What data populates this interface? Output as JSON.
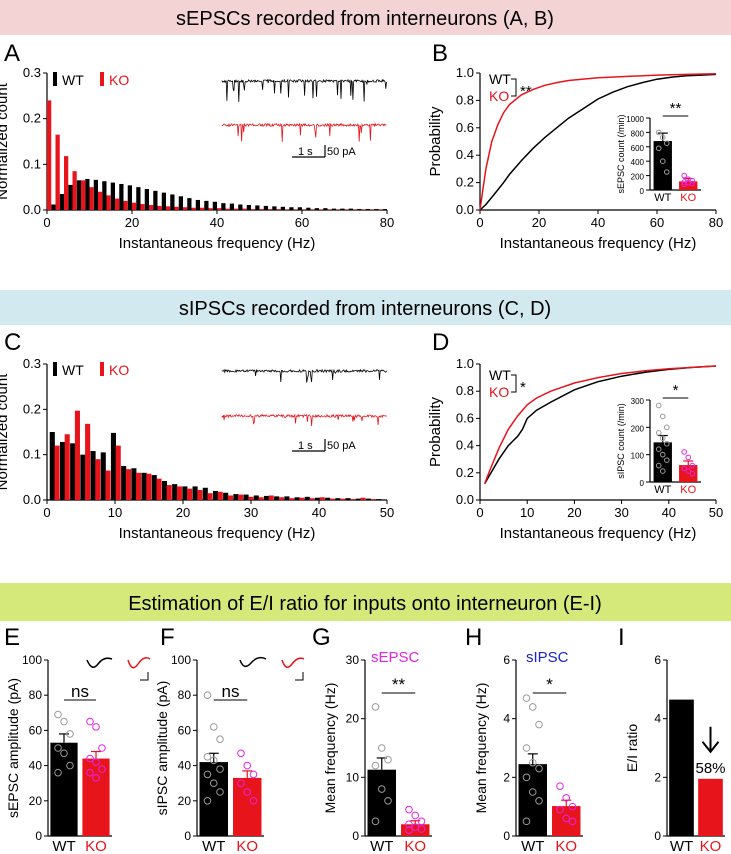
{
  "colors": {
    "wt": "#000000",
    "ko": "#e8141b",
    "pink_band": "#f3d3d4",
    "blue_band": "#d2e9ef",
    "green_band": "#d5e97a",
    "magenta": "#e424e4",
    "blue": "#1a22cc",
    "gray_dot": "#9a9a9a"
  },
  "headers": {
    "top": "sEPSCs recorded from interneurons (A, B)",
    "middle": "sIPSCs recorded from interneurons (C, D)",
    "bottom": "Estimation of E/I ratio for inputs onto interneuron (E-I)"
  },
  "common": {
    "wt": "WT",
    "ko": "KO",
    "scale_time": "1 s",
    "scale_amp": "50 pA"
  },
  "chart_data": [
    {
      "panel": "A",
      "type": "bar",
      "xlabel": "Instantaneous frequency (Hz)",
      "ylabel": "Normalized count",
      "xlim": [
        0,
        80
      ],
      "ylim": [
        0,
        0.3
      ],
      "bin_width": 2,
      "xticks": [
        "0",
        "20",
        "40",
        "60",
        "80"
      ],
      "yticks": [
        "0.0",
        "0.1",
        "0.2",
        "0.3"
      ],
      "legend": [
        "WT",
        "KO"
      ],
      "series": [
        {
          "name": "WT",
          "values": [
            0.012,
            0.035,
            0.055,
            0.065,
            0.068,
            0.066,
            0.063,
            0.06,
            0.057,
            0.054,
            0.05,
            0.046,
            0.042,
            0.038,
            0.034,
            0.03,
            0.026,
            0.022,
            0.02,
            0.018,
            0.015,
            0.014,
            0.012,
            0.011,
            0.01,
            0.009,
            0.008,
            0.007,
            0.006,
            0.006,
            0.005,
            0.004,
            0.004,
            0.003,
            0.003,
            0.003,
            0.002,
            0.002,
            0.002,
            0.002
          ]
        },
        {
          "name": "KO",
          "values": [
            0.24,
            0.165,
            0.118,
            0.085,
            0.065,
            0.05,
            0.04,
            0.032,
            0.025,
            0.02,
            0.016,
            0.013,
            0.011,
            0.009,
            0.008,
            0.007,
            0.006,
            0.005,
            0.005,
            0.004,
            0.004,
            0.003,
            0.003,
            0.003,
            0.002,
            0.002,
            0.002,
            0.002,
            0.001,
            0.001,
            0.001,
            0.001,
            0.001,
            0.001,
            0.001,
            0.001,
            0.001,
            0.001,
            0.001,
            0.001
          ]
        }
      ]
    },
    {
      "panel": "B",
      "type": "line",
      "xlabel": "Instantaneous frequency (Hz)",
      "ylabel": "Probability",
      "xlim": [
        0,
        80
      ],
      "ylim": [
        0,
        1.0
      ],
      "xticks": [
        "0",
        "20",
        "40",
        "60",
        "80"
      ],
      "yticks": [
        "0.0",
        "0.2",
        "0.4",
        "0.6",
        "0.8",
        "1.0"
      ],
      "significance": "**",
      "series": [
        {
          "name": "WT",
          "x": [
            0,
            2,
            5,
            8,
            10,
            14,
            18,
            22,
            26,
            30,
            35,
            40,
            45,
            50,
            55,
            60,
            65,
            70,
            75,
            80
          ],
          "y": [
            0,
            0.04,
            0.12,
            0.2,
            0.26,
            0.36,
            0.45,
            0.53,
            0.6,
            0.67,
            0.74,
            0.81,
            0.86,
            0.9,
            0.93,
            0.955,
            0.97,
            0.98,
            0.985,
            0.99
          ]
        },
        {
          "name": "KO",
          "x": [
            0,
            1,
            2,
            4,
            6,
            8,
            10,
            14,
            18,
            22,
            26,
            30,
            40,
            50,
            60,
            70,
            80
          ],
          "y": [
            0,
            0.15,
            0.3,
            0.5,
            0.62,
            0.71,
            0.77,
            0.84,
            0.88,
            0.91,
            0.93,
            0.945,
            0.965,
            0.975,
            0.985,
            0.99,
            0.995
          ]
        }
      ],
      "inset": {
        "type": "bar",
        "ylabel": "sEPSC count (/min)",
        "ylim": [
          0,
          1000
        ],
        "yticks": [
          "0",
          "200",
          "400",
          "600",
          "800",
          "1000"
        ],
        "categories": [
          "WT",
          "KO"
        ],
        "values": [
          680,
          120
        ],
        "errors": [
          110,
          40
        ],
        "significance": "**",
        "points": [
          [
            800,
            730,
            650,
            580,
            400,
            250
          ],
          [
            200,
            150,
            130,
            110,
            100,
            90,
            80
          ]
        ]
      }
    },
    {
      "panel": "C",
      "type": "bar",
      "xlabel": "Instantaneous frequency (Hz)",
      "ylabel": "Normalized count",
      "xlim": [
        0,
        50
      ],
      "ylim": [
        0,
        0.3
      ],
      "bin_width": 1.5,
      "xticks": [
        "0",
        "10",
        "20",
        "30",
        "40",
        "50"
      ],
      "yticks": [
        "0.0",
        "0.1",
        "0.2",
        "0.3"
      ],
      "legend": [
        "WT",
        "KO"
      ],
      "series": [
        {
          "name": "WT",
          "x": [
            0.4,
            1.9,
            3.4,
            4.9,
            6.4,
            7.9,
            9.4,
            10.9,
            12.4,
            13.9,
            15.4,
            16.9,
            18.4,
            19.9,
            21.4,
            22.9,
            24.4,
            25.9,
            27.4,
            28.9,
            30.4,
            31.9,
            33.4,
            34.9,
            36.4,
            37.9,
            39.4,
            40.9,
            42.4,
            43.9,
            45.4,
            46.9,
            48.4
          ],
          "values": [
            0.15,
            0.128,
            0.125,
            0.1,
            0.108,
            0.105,
            0.148,
            0.075,
            0.07,
            0.06,
            0.055,
            0.042,
            0.035,
            0.03,
            0.03,
            0.027,
            0.02,
            0.016,
            0.013,
            0.012,
            0.01,
            0.009,
            0.008,
            0.008,
            0.006,
            0.007,
            0.005,
            0.005,
            0.004,
            0.004,
            0.003,
            0.003,
            0.002
          ]
        },
        {
          "name": "KO",
          "x": [
            1.1,
            2.6,
            4.1,
            5.6,
            7.1,
            8.6,
            10.1,
            11.6,
            13.1,
            14.6,
            16.1,
            17.6,
            19.1,
            20.6,
            22.1,
            23.6,
            25.1,
            26.6,
            28.1,
            29.6,
            31.1,
            32.6,
            34.1,
            35.6,
            37.1,
            38.6,
            40.1,
            41.6,
            43.1,
            44.6,
            46.1,
            47.6
          ],
          "values": [
            0.12,
            0.145,
            0.197,
            0.168,
            0.09,
            0.065,
            0.12,
            0.068,
            0.06,
            0.058,
            0.047,
            0.033,
            0.03,
            0.025,
            0.022,
            0.015,
            0.018,
            0.01,
            0.012,
            0.007,
            0.006,
            0.01,
            0.006,
            0.004,
            0.005,
            0.004,
            0.006,
            0.003,
            0.003,
            0.002,
            0.005,
            0.002
          ]
        }
      ]
    },
    {
      "panel": "D",
      "type": "line",
      "xlabel": "Instantaneous frequency (Hz)",
      "ylabel": "Probability",
      "xlim": [
        0,
        50
      ],
      "ylim": [
        0,
        1.0
      ],
      "xticks": [
        "0",
        "10",
        "20",
        "30",
        "40",
        "50"
      ],
      "yticks": [
        "0.0",
        "0.2",
        "0.4",
        "0.6",
        "0.8",
        "1.0"
      ],
      "significance": "*",
      "series": [
        {
          "name": "WT",
          "x": [
            1,
            2,
            4,
            6,
            8,
            9,
            10,
            12,
            15,
            20,
            25,
            30,
            35,
            40,
            45,
            50
          ],
          "y": [
            0.12,
            0.18,
            0.3,
            0.4,
            0.47,
            0.52,
            0.6,
            0.66,
            0.72,
            0.81,
            0.87,
            0.91,
            0.94,
            0.96,
            0.975,
            0.985
          ]
        },
        {
          "name": "KO",
          "x": [
            1,
            2,
            4,
            6,
            8,
            10,
            12,
            15,
            20,
            25,
            30,
            35,
            40,
            45,
            50
          ],
          "y": [
            0.12,
            0.21,
            0.38,
            0.52,
            0.62,
            0.7,
            0.75,
            0.8,
            0.86,
            0.9,
            0.93,
            0.95,
            0.965,
            0.975,
            0.985
          ]
        }
      ],
      "inset": {
        "type": "bar",
        "ylabel": "sIPSC count (/min)",
        "ylim": [
          0,
          300
        ],
        "yticks": [
          "0",
          "100",
          "200",
          "300"
        ],
        "categories": [
          "WT",
          "KO"
        ],
        "values": [
          145,
          62
        ],
        "errors": [
          25,
          15
        ],
        "significance": "*",
        "points": [
          [
            280,
            240,
            200,
            180,
            160,
            140,
            120,
            100,
            80,
            60,
            40
          ],
          [
            110,
            90,
            60,
            50,
            40,
            30
          ]
        ]
      }
    },
    {
      "panel": "E",
      "type": "bar",
      "ylabel": "sEPSC amplitude (pA)",
      "ylim": [
        0,
        100
      ],
      "yticks": [
        "0",
        "20",
        "40",
        "60",
        "80",
        "100"
      ],
      "categories": [
        "WT",
        "KO"
      ],
      "values": [
        53,
        44
      ],
      "errors": [
        5,
        4
      ],
      "significance": "ns",
      "points": [
        [
          69,
          65,
          58,
          50,
          47,
          40,
          36
        ],
        [
          65,
          62,
          50,
          44,
          42,
          38,
          36,
          33
        ]
      ]
    },
    {
      "panel": "F",
      "type": "bar",
      "ylabel": "sIPSC amplitude (pA)",
      "ylim": [
        0,
        100
      ],
      "yticks": [
        "0",
        "20",
        "40",
        "60",
        "80",
        "100"
      ],
      "categories": [
        "WT",
        "KO"
      ],
      "values": [
        42,
        33
      ],
      "errors": [
        5,
        4
      ],
      "significance": "ns",
      "points": [
        [
          80,
          62,
          55,
          45,
          43,
          38,
          35,
          30,
          25,
          20
        ],
        [
          47,
          40,
          35,
          30,
          25,
          20
        ]
      ]
    },
    {
      "panel": "G",
      "type": "bar",
      "ylabel": "Mean frequency (Hz)",
      "title": "sEPSC",
      "ylim": [
        0,
        30
      ],
      "yticks": [
        "0",
        "10",
        "20",
        "30"
      ],
      "categories": [
        "WT",
        "KO"
      ],
      "values": [
        11.3,
        2.0
      ],
      "errors": [
        2.0,
        0.6
      ],
      "significance": "**",
      "points": [
        [
          22,
          15,
          13,
          12,
          8,
          6,
          2.5
        ],
        [
          4.5,
          3.5,
          2.5,
          2,
          1.5,
          1.2,
          1
        ]
      ]
    },
    {
      "panel": "H",
      "type": "bar",
      "ylabel": "Mean frequency (Hz)",
      "title": "sIPSC",
      "ylim": [
        0,
        6
      ],
      "yticks": [
        "0",
        "2",
        "4",
        "6"
      ],
      "categories": [
        "WT",
        "KO"
      ],
      "values": [
        2.45,
        1.02
      ],
      "errors": [
        0.35,
        0.2
      ],
      "significance": "*",
      "points": [
        [
          4.7,
          4.4,
          3.8,
          3.0,
          2.5,
          2.3,
          2.0,
          1.5,
          1.2,
          0.5
        ],
        [
          1.7,
          1.3,
          1.0,
          0.9,
          0.6,
          0.5
        ]
      ]
    },
    {
      "panel": "I",
      "type": "bar",
      "ylabel": "E/I ratio",
      "ylim": [
        0,
        6
      ],
      "yticks": [
        "0",
        "2",
        "4",
        "6"
      ],
      "categories": [
        "WT",
        "KO"
      ],
      "values": [
        4.65,
        1.95
      ],
      "annotation": "58%"
    }
  ]
}
